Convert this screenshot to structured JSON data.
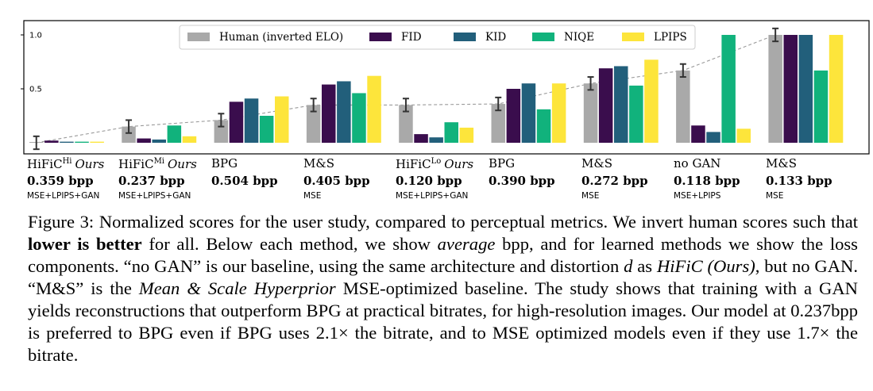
{
  "chart_data": {
    "type": "bar",
    "ylim": [
      0,
      1
    ],
    "yticks": [
      "0.5",
      "1.0"
    ],
    "legend_position": "top",
    "series": [
      {
        "name": "Human (inverted ELO)",
        "color": "#a9a9a9",
        "values": [
          0.0,
          0.15,
          0.21,
          0.35,
          0.35,
          0.36,
          0.55,
          0.67,
          1.0
        ],
        "error": [
          0.06,
          0.06,
          0.06,
          0.06,
          0.06,
          0.06,
          0.06,
          0.06,
          0.06
        ]
      },
      {
        "name": "FID",
        "color": "#3a0d4d",
        "values": [
          0.02,
          0.04,
          0.38,
          0.54,
          0.08,
          0.5,
          0.69,
          0.16,
          1.0
        ]
      },
      {
        "name": "KID",
        "color": "#225f7b",
        "values": [
          0.01,
          0.03,
          0.41,
          0.57,
          0.05,
          0.55,
          0.71,
          0.1,
          1.0
        ]
      },
      {
        "name": "NIQE",
        "color": "#11b27c",
        "values": [
          0.01,
          0.16,
          0.25,
          0.46,
          0.19,
          0.31,
          0.53,
          1.0,
          0.67
        ]
      },
      {
        "name": "LPIPS",
        "color": "#fde53b",
        "values": [
          0.01,
          0.06,
          0.43,
          0.62,
          0.14,
          0.55,
          0.77,
          0.13,
          1.0
        ]
      }
    ],
    "trend_line": "Human (inverted ELO)"
  },
  "methods": [
    {
      "name": "HiFiC",
      "sup": "Hi",
      "ours": "Ours",
      "bpp": "0.359 bpp",
      "loss": "MSE+LPIPS+GAN"
    },
    {
      "name": "HiFiC",
      "sup": "Mi",
      "ours": "Ours",
      "bpp": "0.237 bpp",
      "loss": "MSE+LPIPS+GAN"
    },
    {
      "name": "BPG",
      "sup": "",
      "ours": "",
      "bpp": "0.504 bpp",
      "loss": ""
    },
    {
      "name": "M&S",
      "sup": "",
      "ours": "",
      "bpp": "0.405 bpp",
      "loss": "MSE"
    },
    {
      "name": "HiFiC",
      "sup": "Lo",
      "ours": "Ours",
      "bpp": "0.120 bpp",
      "loss": "MSE+LPIPS+GAN"
    },
    {
      "name": "BPG",
      "sup": "",
      "ours": "",
      "bpp": "0.390 bpp",
      "loss": ""
    },
    {
      "name": "M&S",
      "sup": "",
      "ours": "",
      "bpp": "0.272 bpp",
      "loss": "MSE"
    },
    {
      "name": "no GAN",
      "sup": "",
      "ours": "",
      "bpp": "0.118 bpp",
      "loss": "MSE+LPIPS"
    },
    {
      "name": "M&S",
      "sup": "",
      "ours": "",
      "bpp": "0.133 bpp",
      "loss": "MSE"
    }
  ],
  "caption": {
    "p01": "Figure 3: Normalized scores for the user study, compared to perceptual metrics. We invert human scores such that ",
    "p02": "lower is better",
    "p03": " for all. Below each method, we show ",
    "p04": "average",
    "p05": " bpp, and for learned methods we show the loss components. “no GAN” is our baseline, using the same architecture and distortion ",
    "p06": "d",
    "p07": " as ",
    "p08": "HiFiC (Ours)",
    "p09": ", but no GAN. “M&S” is the ",
    "p10": "Mean & Scale Hyperprior",
    "p11": " MSE-optimized baseline. The study shows that training with a GAN yields reconstructions that outperform BPG at practical bitrates, for high-resolution images. Our model at 0.237bpp is preferred to BPG even if BPG uses 2.1× the bitrate, and to MSE optimized models even if they use 1.7× the bitrate."
  }
}
